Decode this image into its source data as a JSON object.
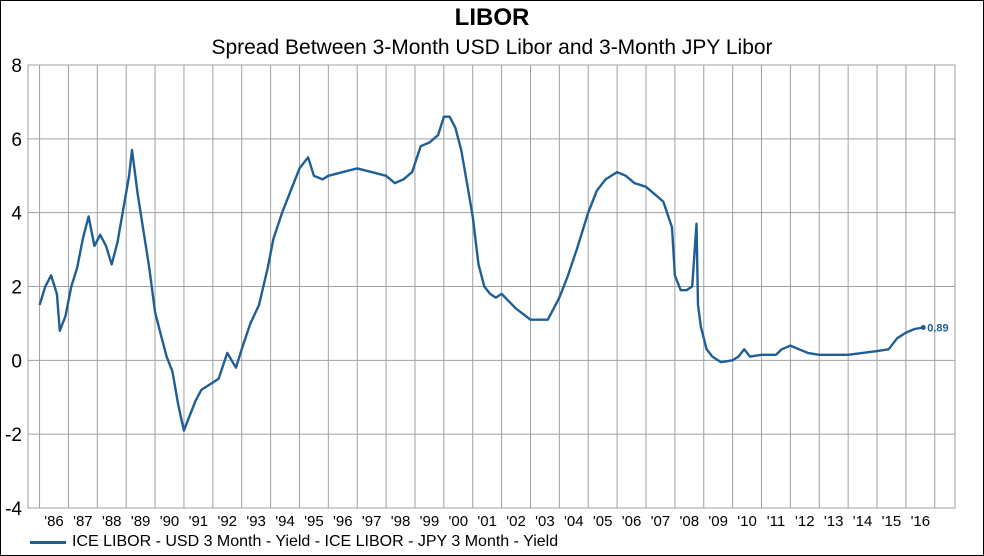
{
  "chart_data": {
    "type": "line",
    "title": "LIBOR",
    "subtitle": "Spread Between 3-Month USD Libor and 3-Month JPY Libor",
    "xlabel": "",
    "ylabel": "",
    "ylim": [
      -4,
      8
    ],
    "yticks": [
      "8",
      "6",
      "4",
      "2",
      "0",
      "-2",
      "-4"
    ],
    "xticks": [
      "'86",
      "'87",
      "'88",
      "'89",
      "'90",
      "'91",
      "'92",
      "'93",
      "'94",
      "'95",
      "'96",
      "'97",
      "'98",
      "'99",
      "'00",
      "'01",
      "'02",
      "'03",
      "'04",
      "'05",
      "'06",
      "'07",
      "'08",
      "'09",
      "'10",
      "'11",
      "'12",
      "'13",
      "'14",
      "'15",
      "'16"
    ],
    "grid": true,
    "legend_position": "bottom",
    "last_value_label": "0.89",
    "colors": {
      "series": "#1f5f95",
      "grid": "#a0a0a0"
    },
    "series": [
      {
        "name": "ICE LIBOR - USD 3 Month - Yield - ICE LIBOR - JPY 3 Month - Yield",
        "x": [
          1986.0,
          1986.2,
          1986.4,
          1986.6,
          1986.7,
          1986.9,
          1987.1,
          1987.3,
          1987.5,
          1987.7,
          1987.9,
          1988.1,
          1988.3,
          1988.5,
          1988.7,
          1988.9,
          1989.1,
          1989.2,
          1989.4,
          1989.6,
          1989.8,
          1990.0,
          1990.2,
          1990.4,
          1990.6,
          1990.8,
          1991.0,
          1991.2,
          1991.4,
          1991.6,
          1991.8,
          1992.0,
          1992.2,
          1992.5,
          1992.8,
          1993.0,
          1993.3,
          1993.6,
          1993.9,
          1994.1,
          1994.4,
          1994.7,
          1995.0,
          1995.3,
          1995.5,
          1995.8,
          1996.0,
          1996.5,
          1997.0,
          1997.5,
          1998.0,
          1998.3,
          1998.6,
          1998.9,
          1999.2,
          1999.5,
          1999.8,
          2000.0,
          2000.2,
          2000.4,
          2000.6,
          2000.8,
          2001.0,
          2001.2,
          2001.4,
          2001.6,
          2001.8,
          2002.0,
          2002.5,
          2003.0,
          2003.3,
          2003.6,
          2004.0,
          2004.3,
          2004.6,
          2005.0,
          2005.3,
          2005.6,
          2006.0,
          2006.3,
          2006.6,
          2007.0,
          2007.3,
          2007.6,
          2007.9,
          2008.0,
          2008.2,
          2008.4,
          2008.6,
          2008.75,
          2008.8,
          2008.9,
          2009.0,
          2009.1,
          2009.3,
          2009.6,
          2010.0,
          2010.2,
          2010.4,
          2010.6,
          2011.0,
          2011.5,
          2011.7,
          2012.0,
          2012.3,
          2012.6,
          2013.0,
          2013.5,
          2014.0,
          2014.5,
          2015.0,
          2015.4,
          2015.7,
          2016.0,
          2016.3,
          2016.6
        ],
        "values": [
          1.5,
          2.0,
          2.3,
          1.8,
          0.8,
          1.2,
          2.0,
          2.5,
          3.3,
          3.9,
          3.1,
          3.4,
          3.1,
          2.6,
          3.2,
          4.1,
          5.0,
          5.7,
          4.5,
          3.5,
          2.5,
          1.3,
          0.7,
          0.1,
          -0.3,
          -1.2,
          -1.9,
          -1.5,
          -1.1,
          -0.8,
          -0.7,
          -0.6,
          -0.5,
          0.2,
          -0.2,
          0.3,
          1.0,
          1.5,
          2.5,
          3.3,
          4.0,
          4.6,
          5.2,
          5.5,
          5.0,
          4.9,
          5.0,
          5.1,
          5.2,
          5.1,
          5.0,
          4.8,
          4.9,
          5.1,
          5.8,
          5.9,
          6.1,
          6.6,
          6.6,
          6.3,
          5.7,
          4.8,
          3.9,
          2.6,
          2.0,
          1.8,
          1.7,
          1.8,
          1.4,
          1.1,
          1.1,
          1.1,
          1.7,
          2.3,
          3.0,
          4.0,
          4.6,
          4.9,
          5.1,
          5.0,
          4.8,
          4.7,
          4.5,
          4.3,
          3.6,
          2.3,
          1.9,
          1.9,
          2.0,
          3.7,
          1.5,
          0.9,
          0.6,
          0.3,
          0.1,
          -0.05,
          0.0,
          0.1,
          0.3,
          0.1,
          0.15,
          0.15,
          0.3,
          0.4,
          0.3,
          0.2,
          0.15,
          0.15,
          0.15,
          0.2,
          0.25,
          0.3,
          0.6,
          0.75,
          0.85,
          0.89
        ]
      }
    ]
  }
}
